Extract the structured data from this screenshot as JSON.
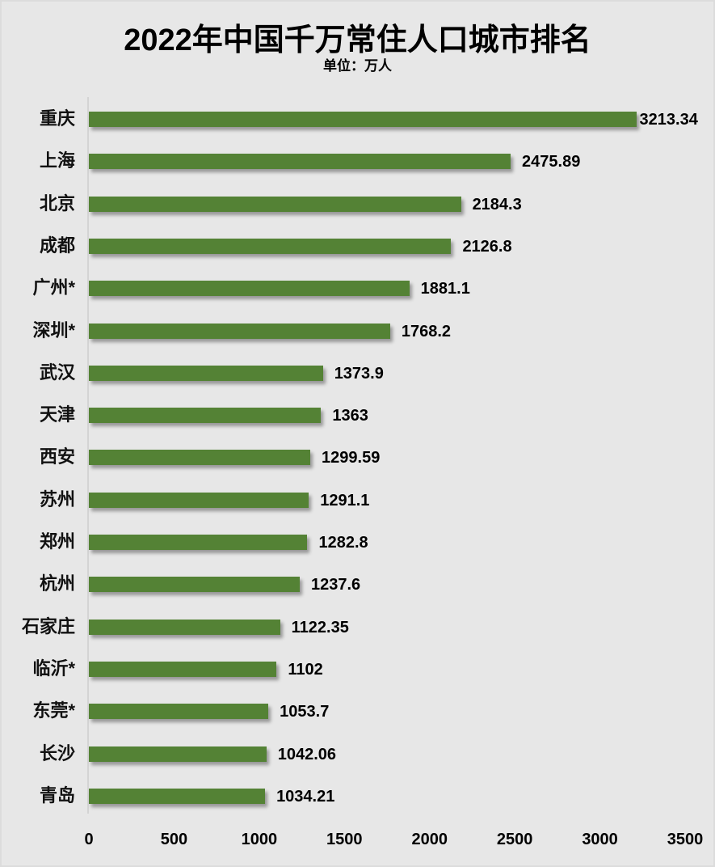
{
  "chart_data": {
    "type": "bar",
    "orientation": "horizontal",
    "title": "2022年中国千万常住人口城市排名",
    "subtitle": "单位：万人",
    "xlabel": "",
    "ylabel": "",
    "xlim": [
      0,
      3500
    ],
    "xticks": [
      "0",
      "500",
      "1000",
      "1500",
      "2000",
      "2500",
      "3000",
      "3500"
    ],
    "grid": false,
    "legend": null,
    "bar_color": "#548235",
    "categories": [
      "重庆",
      "上海",
      "北京",
      "成都",
      "广州*",
      "深圳*",
      "武汉",
      "天津",
      "西安",
      "苏州",
      "郑州",
      "杭州",
      "石家庄",
      "临沂*",
      "东莞*",
      "长沙",
      "青岛"
    ],
    "values": [
      3213.34,
      2475.89,
      2184.3,
      2126.8,
      1881.1,
      1768.2,
      1373.9,
      1363,
      1299.59,
      1291.1,
      1282.8,
      1237.6,
      1122.35,
      1102,
      1053.7,
      1042.06,
      1034.21
    ],
    "value_labels": [
      "3213.34",
      "2475.89",
      "2184.3",
      "2126.8",
      "1881.1",
      "1768.2",
      "1373.9",
      "1363",
      "1299.59",
      "1291.1",
      "1282.8",
      "1237.6",
      "1122.35",
      "1102",
      "1053.7",
      "1042.06",
      "1034.21"
    ]
  }
}
